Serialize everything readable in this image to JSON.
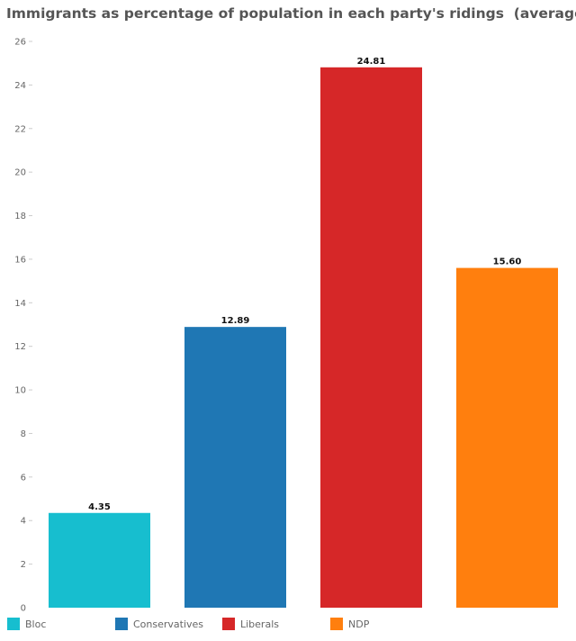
{
  "chart_data": {
    "type": "bar",
    "title": "Immigrants as percentage of population in each party's ridings  (average)",
    "categories": [
      "Bloc",
      "Conservatives",
      "Liberals",
      "NDP"
    ],
    "values": [
      4.35,
      12.89,
      24.81,
      15.6
    ],
    "value_labels": [
      "4.35",
      "12.89",
      "24.81",
      "15.60"
    ],
    "colors": [
      "#17becf",
      "#1f77b4",
      "#d62728",
      "#ff7f0e"
    ],
    "ylim": [
      0,
      26
    ],
    "yticks": [
      0,
      2,
      4,
      6,
      8,
      10,
      12,
      14,
      16,
      18,
      20,
      22,
      24,
      26
    ],
    "grid": false,
    "legend": "bottom",
    "xlabel": "",
    "ylabel": ""
  }
}
